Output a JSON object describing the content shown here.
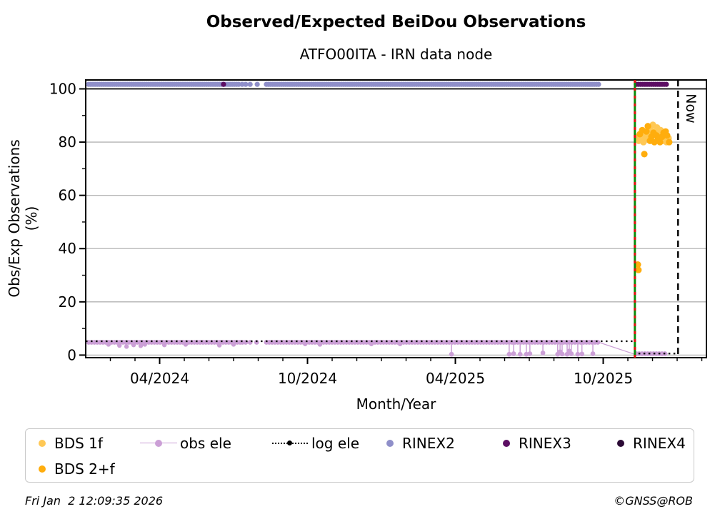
{
  "title": "Observed/Expected BeiDou Observations",
  "subtitle": "ATFO00ITA - IRN data node",
  "axes": {
    "y_label": "Obs/Exp Observations (%)",
    "x_label": "Month/Year",
    "now_label": "Now"
  },
  "footer": {
    "timestamp": "Fri Jan  2 12:09:35 2026",
    "credit": "©GNSS@ROB"
  },
  "legend": {
    "items": [
      {
        "label": "BDS 1f",
        "marker": "dot",
        "color": "#ffc855"
      },
      {
        "label": "obs ele",
        "marker": "line-dot",
        "color": "#cb9fd6"
      },
      {
        "label": "log ele",
        "marker": "dotted",
        "color": "#000000"
      },
      {
        "label": "RINEX2",
        "marker": "dot",
        "color": "#8f8fc9"
      },
      {
        "label": "RINEX3",
        "marker": "dot",
        "color": "#5c0e63"
      },
      {
        "label": "RINEX4",
        "marker": "dot",
        "color": "#2b0a35"
      },
      {
        "label": "BDS 2+f",
        "marker": "dot",
        "color": "#ffad0d"
      }
    ]
  },
  "chart_data": {
    "type": "scatter",
    "title": "Observed/Expected BeiDou Observations",
    "subtitle": "ATFO00ITA - IRN data node",
    "xlabel": "Month/Year",
    "ylabel": "Obs/Exp Observations (%)",
    "x_range_years": [
      2024.0,
      2026.099
    ],
    "ylim": [
      0,
      103.3
    ],
    "grid": "horizontal-gray",
    "y_ticks": [
      {
        "v": 0,
        "label": "0"
      },
      {
        "v": 20,
        "label": "20"
      },
      {
        "v": 40,
        "label": "40"
      },
      {
        "v": 60,
        "label": "60"
      },
      {
        "v": 80,
        "label": "80"
      },
      {
        "v": 100,
        "label": "100"
      }
    ],
    "y_minor_step": 10,
    "x_ticks": [
      {
        "v": 2024.25,
        "label": "04/2024"
      },
      {
        "v": 2024.75,
        "label": "10/2024"
      },
      {
        "v": 2025.25,
        "label": "04/2025"
      },
      {
        "v": 2025.75,
        "label": "10/2025"
      }
    ],
    "x_minor_step_months": 1,
    "hline_y100_color": "#000000",
    "gridline_color": "#b3b3b3",
    "annotations": {
      "file_end_line": {
        "x": 2025.857,
        "style": "green-solid-red-dashed",
        "colors": [
          "#0a8a0a",
          "#e01010"
        ]
      },
      "now_line": {
        "x": 2026.003,
        "style": "black-dashed",
        "label": "Now"
      }
    },
    "series": [
      {
        "name": "RINEX2",
        "color": "#8f8fc9",
        "y": 101.7,
        "segments": [
          [
            2024.01,
            2024.524
          ],
          [
            2024.611,
            2025.739
          ]
        ],
        "points": [
          2024.529,
          2024.541,
          2024.556,
          2024.58
        ]
      },
      {
        "name": "RINEX3",
        "color": "#5c0e63",
        "y": 101.7,
        "segments": [
          [
            2025.862,
            2025.968
          ]
        ],
        "points": [
          2024.466
        ]
      },
      {
        "name": "RINEX4",
        "color": "#2b0a35",
        "y": 101.7,
        "segments": [],
        "points": []
      },
      {
        "name": "BDS 1f",
        "color": "#ffc855",
        "points_xy": [
          [
            2025.865,
            82
          ],
          [
            2025.87,
            80.5
          ],
          [
            2025.879,
            81
          ],
          [
            2025.886,
            80
          ],
          [
            2025.891,
            82.5
          ],
          [
            2025.899,
            81.5
          ],
          [
            2025.903,
            83
          ],
          [
            2025.911,
            84.5
          ],
          [
            2025.918,
            86.5
          ],
          [
            2025.925,
            84
          ],
          [
            2025.932,
            85.5
          ],
          [
            2025.94,
            83
          ],
          [
            2025.944,
            84.5
          ],
          [
            2025.952,
            80.5
          ],
          [
            2025.959,
            81.5
          ],
          [
            2025.964,
            80
          ],
          [
            2025.971,
            81.5
          ]
        ]
      },
      {
        "name": "BDS 2+f",
        "color": "#ffad0d",
        "points_xy": [
          [
            2025.867,
            34
          ],
          [
            2025.869,
            32
          ],
          [
            2025.874,
            83
          ],
          [
            2025.882,
            84.5
          ],
          [
            2025.889,
            75.5
          ],
          [
            2025.896,
            84
          ],
          [
            2025.901,
            86
          ],
          [
            2025.908,
            80.5
          ],
          [
            2025.913,
            82
          ],
          [
            2025.92,
            83.5
          ],
          [
            2025.923,
            80
          ],
          [
            2025.93,
            82.5
          ],
          [
            2025.935,
            81
          ],
          [
            2025.942,
            80
          ],
          [
            2025.949,
            82
          ],
          [
            2025.954,
            83.5
          ],
          [
            2025.961,
            84
          ],
          [
            2025.966,
            82.5
          ],
          [
            2025.973,
            80
          ]
        ]
      },
      {
        "name": "obs ele",
        "color": "#cb9fd6",
        "baseline": 4.8,
        "segments": [
          [
            2024.01,
            2024.524
          ],
          [
            2024.611,
            2025.735
          ]
        ],
        "gap_points": [
          2024.53,
          2024.541,
          2024.556,
          2024.578
        ],
        "shallow_dips": [
          [
            2024.077,
            4.0
          ],
          [
            2024.114,
            3.6
          ],
          [
            2024.138,
            3.2
          ],
          [
            2024.162,
            3.8
          ],
          [
            2024.186,
            3.5
          ],
          [
            2024.2,
            4.0
          ],
          [
            2024.266,
            3.8
          ],
          [
            2024.338,
            4.0
          ],
          [
            2024.452,
            3.7
          ],
          [
            2024.5,
            4.0
          ],
          [
            2024.742,
            4.2
          ],
          [
            2024.792,
            4.0
          ],
          [
            2024.966,
            4.2
          ],
          [
            2025.063,
            4.2
          ]
        ],
        "zero_dips": [
          [
            2025.237,
            0.3
          ],
          [
            2025.432,
            0.3
          ],
          [
            2025.447,
            0.5
          ],
          [
            2025.469,
            0.3
          ],
          [
            2025.49,
            0.3
          ],
          [
            2025.502,
            0.5
          ],
          [
            2025.546,
            0.8
          ],
          [
            2025.596,
            0.3
          ],
          [
            2025.604,
            1.2
          ],
          [
            2025.611,
            0.4
          ],
          [
            2025.628,
            0.3
          ],
          [
            2025.635,
            1.5
          ],
          [
            2025.642,
            0.5
          ],
          [
            2025.664,
            0.3
          ],
          [
            2025.678,
            0.4
          ],
          [
            2025.715,
            0.5
          ]
        ],
        "drop_to": [
          2025.857,
          0.3
        ],
        "tail": {
          "segment": [
            2025.862,
            2025.968
          ],
          "y": 0.5
        }
      },
      {
        "name": "log ele",
        "color": "#000000",
        "style": "dotted",
        "path_xy": [
          [
            2024.0,
            5.2
          ],
          [
            2025.857,
            5.2
          ],
          [
            2025.857,
            0.6
          ],
          [
            2026.005,
            0.6
          ]
        ]
      }
    ]
  }
}
